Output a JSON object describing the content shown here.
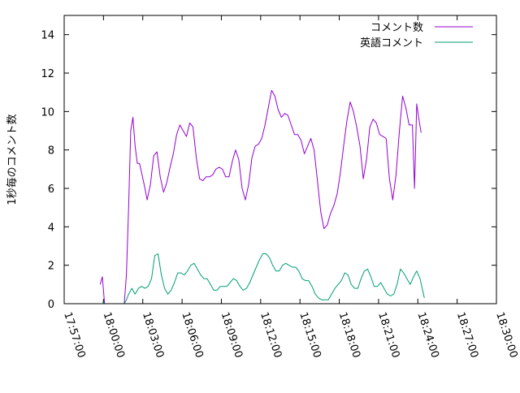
{
  "chart_data": {
    "type": "line",
    "ylabel": "1秒毎のコメント数",
    "xlabel": "",
    "title": "",
    "ylim": [
      0,
      15
    ],
    "y_ticks": [
      "0",
      "2",
      "4",
      "6",
      "8",
      "10",
      "12",
      "14"
    ],
    "xlim": [
      "17:57:00",
      "18:30:00"
    ],
    "x_ticks": [
      "17:57:00",
      "18:00:00",
      "18:03:00",
      "18:06:00",
      "18:09:00",
      "18:12:00",
      "18:15:00",
      "18:18:00",
      "18:21:00",
      "18:24:00",
      "18:27:00",
      "18:30:00"
    ],
    "grid": false,
    "legend_position": "top-right",
    "colors": {
      "series_1": "#9400d3",
      "series_2": "#009e73",
      "axes": "#000000"
    },
    "series": [
      {
        "name": "コメント数",
        "color": "#9400d3",
        "points": [
          [
            "17:59:45",
            1.0
          ],
          [
            "17:59:55",
            1.4
          ],
          [
            "18:00:05",
            0.0
          ],
          [
            "18:00:15",
            0.0
          ],
          [
            "18:00:25",
            0.0
          ],
          [
            "18:00:35",
            0.0
          ],
          [
            "18:00:45",
            0.0
          ],
          [
            "18:00:55",
            0.0
          ],
          [
            "18:01:05",
            0.0
          ],
          [
            "18:01:15",
            0.0
          ],
          [
            "18:01:25",
            0.0
          ],
          [
            "18:01:35",
            0.0
          ],
          [
            "18:01:45",
            1.5
          ],
          [
            "18:01:55",
            5.0
          ],
          [
            "18:02:05",
            9.0
          ],
          [
            "18:02:15",
            9.7
          ],
          [
            "18:02:25",
            8.2
          ],
          [
            "18:02:35",
            7.3
          ],
          [
            "18:02:45",
            7.3
          ],
          [
            "18:02:55",
            6.8
          ],
          [
            "18:03:10",
            6.0
          ],
          [
            "18:03:20",
            5.4
          ],
          [
            "18:03:35",
            6.2
          ],
          [
            "18:03:50",
            7.7
          ],
          [
            "18:04:05",
            7.9
          ],
          [
            "18:04:20",
            6.6
          ],
          [
            "18:04:35",
            5.8
          ],
          [
            "18:04:50",
            6.3
          ],
          [
            "18:05:05",
            7.1
          ],
          [
            "18:05:20",
            7.8
          ],
          [
            "18:05:35",
            8.8
          ],
          [
            "18:05:50",
            9.3
          ],
          [
            "18:06:05",
            9.0
          ],
          [
            "18:06:20",
            8.7
          ],
          [
            "18:06:35",
            9.4
          ],
          [
            "18:06:50",
            9.2
          ],
          [
            "18:07:05",
            7.6
          ],
          [
            "18:07:20",
            6.5
          ],
          [
            "18:07:35",
            6.4
          ],
          [
            "18:07:50",
            6.6
          ],
          [
            "18:08:05",
            6.6
          ],
          [
            "18:08:20",
            6.7
          ],
          [
            "18:08:35",
            7.0
          ],
          [
            "18:08:50",
            7.1
          ],
          [
            "18:09:05",
            7.0
          ],
          [
            "18:09:20",
            6.6
          ],
          [
            "18:09:35",
            6.6
          ],
          [
            "18:09:50",
            7.4
          ],
          [
            "18:10:05",
            8.0
          ],
          [
            "18:10:20",
            7.5
          ],
          [
            "18:10:35",
            6.0
          ],
          [
            "18:10:50",
            5.4
          ],
          [
            "18:11:05",
            6.2
          ],
          [
            "18:11:20",
            7.6
          ],
          [
            "18:11:35",
            8.2
          ],
          [
            "18:11:50",
            8.3
          ],
          [
            "18:12:05",
            8.6
          ],
          [
            "18:12:20",
            9.3
          ],
          [
            "18:12:35",
            10.2
          ],
          [
            "18:12:50",
            11.1
          ],
          [
            "18:13:05",
            10.8
          ],
          [
            "18:13:20",
            10.1
          ],
          [
            "18:13:35",
            9.7
          ],
          [
            "18:13:50",
            9.9
          ],
          [
            "18:14:05",
            9.8
          ],
          [
            "18:14:20",
            9.3
          ],
          [
            "18:14:35",
            8.8
          ],
          [
            "18:14:50",
            8.8
          ],
          [
            "18:15:05",
            8.5
          ],
          [
            "18:15:20",
            7.8
          ],
          [
            "18:15:35",
            8.2
          ],
          [
            "18:15:50",
            8.6
          ],
          [
            "18:16:05",
            8.0
          ],
          [
            "18:16:20",
            6.4
          ],
          [
            "18:16:35",
            4.8
          ],
          [
            "18:16:50",
            3.9
          ],
          [
            "18:17:05",
            4.1
          ],
          [
            "18:17:20",
            4.7
          ],
          [
            "18:17:35",
            5.1
          ],
          [
            "18:17:50",
            5.7
          ],
          [
            "18:18:05",
            6.8
          ],
          [
            "18:18:20",
            8.2
          ],
          [
            "18:18:35",
            9.5
          ],
          [
            "18:18:50",
            10.5
          ],
          [
            "18:19:05",
            10.0
          ],
          [
            "18:19:20",
            9.2
          ],
          [
            "18:19:35",
            8.2
          ],
          [
            "18:19:50",
            6.5
          ],
          [
            "18:20:05",
            7.5
          ],
          [
            "18:20:20",
            9.2
          ],
          [
            "18:20:35",
            9.6
          ],
          [
            "18:20:50",
            9.4
          ],
          [
            "18:21:05",
            8.8
          ],
          [
            "18:21:20",
            8.7
          ],
          [
            "18:21:35",
            8.6
          ],
          [
            "18:21:50",
            6.5
          ],
          [
            "18:22:05",
            5.4
          ],
          [
            "18:22:20",
            6.7
          ],
          [
            "18:22:35",
            8.9
          ],
          [
            "18:22:50",
            10.8
          ],
          [
            "18:23:05",
            10.2
          ],
          [
            "18:23:20",
            9.3
          ],
          [
            "18:23:35",
            9.3
          ],
          [
            "18:23:45",
            6.0
          ],
          [
            "18:23:55",
            10.4
          ],
          [
            "18:24:05",
            9.6
          ],
          [
            "18:24:15",
            8.9
          ]
        ]
      },
      {
        "name": "英語コメント",
        "color": "#009e73",
        "points": [
          [
            "17:59:55",
            0.1
          ],
          [
            "18:00:05",
            0.0
          ],
          [
            "18:00:15",
            0.0
          ],
          [
            "18:00:25",
            0.0
          ],
          [
            "18:00:35",
            0.0
          ],
          [
            "18:00:45",
            0.0
          ],
          [
            "18:00:55",
            0.0
          ],
          [
            "18:01:05",
            0.0
          ],
          [
            "18:01:15",
            0.0
          ],
          [
            "18:01:25",
            0.0
          ],
          [
            "18:01:35",
            0.0
          ],
          [
            "18:01:45",
            0.2
          ],
          [
            "18:01:55",
            0.5
          ],
          [
            "18:02:10",
            0.8
          ],
          [
            "18:02:25",
            0.5
          ],
          [
            "18:02:40",
            0.8
          ],
          [
            "18:02:55",
            0.9
          ],
          [
            "18:03:10",
            0.8
          ],
          [
            "18:03:25",
            0.9
          ],
          [
            "18:03:40",
            1.3
          ],
          [
            "18:03:55",
            2.5
          ],
          [
            "18:04:10",
            2.6
          ],
          [
            "18:04:25",
            1.5
          ],
          [
            "18:04:40",
            0.8
          ],
          [
            "18:04:55",
            0.5
          ],
          [
            "18:05:10",
            0.7
          ],
          [
            "18:05:25",
            1.1
          ],
          [
            "18:05:40",
            1.6
          ],
          [
            "18:05:55",
            1.6
          ],
          [
            "18:06:10",
            1.5
          ],
          [
            "18:06:25",
            1.7
          ],
          [
            "18:06:40",
            2.0
          ],
          [
            "18:06:55",
            2.1
          ],
          [
            "18:07:10",
            1.8
          ],
          [
            "18:07:25",
            1.5
          ],
          [
            "18:07:40",
            1.3
          ],
          [
            "18:07:55",
            1.3
          ],
          [
            "18:08:10",
            1.0
          ],
          [
            "18:08:25",
            0.7
          ],
          [
            "18:08:40",
            0.7
          ],
          [
            "18:08:55",
            0.9
          ],
          [
            "18:09:10",
            0.9
          ],
          [
            "18:09:25",
            0.9
          ],
          [
            "18:09:40",
            1.1
          ],
          [
            "18:09:55",
            1.3
          ],
          [
            "18:10:10",
            1.2
          ],
          [
            "18:10:25",
            0.9
          ],
          [
            "18:10:40",
            0.7
          ],
          [
            "18:10:55",
            0.8
          ],
          [
            "18:11:10",
            1.1
          ],
          [
            "18:11:25",
            1.5
          ],
          [
            "18:11:40",
            1.9
          ],
          [
            "18:11:55",
            2.3
          ],
          [
            "18:12:10",
            2.6
          ],
          [
            "18:12:25",
            2.6
          ],
          [
            "18:12:40",
            2.4
          ],
          [
            "18:12:55",
            2.0
          ],
          [
            "18:13:10",
            1.7
          ],
          [
            "18:13:25",
            1.7
          ],
          [
            "18:13:40",
            2.0
          ],
          [
            "18:13:55",
            2.1
          ],
          [
            "18:14:10",
            2.0
          ],
          [
            "18:14:25",
            1.9
          ],
          [
            "18:14:40",
            1.9
          ],
          [
            "18:14:55",
            1.7
          ],
          [
            "18:15:10",
            1.3
          ],
          [
            "18:15:25",
            1.2
          ],
          [
            "18:15:40",
            1.2
          ],
          [
            "18:15:55",
            0.9
          ],
          [
            "18:16:10",
            0.5
          ],
          [
            "18:16:25",
            0.3
          ],
          [
            "18:16:40",
            0.2
          ],
          [
            "18:16:55",
            0.2
          ],
          [
            "18:17:10",
            0.2
          ],
          [
            "18:17:25",
            0.5
          ],
          [
            "18:17:40",
            0.8
          ],
          [
            "18:17:55",
            1.0
          ],
          [
            "18:18:10",
            1.2
          ],
          [
            "18:18:25",
            1.6
          ],
          [
            "18:18:40",
            1.5
          ],
          [
            "18:18:55",
            1.0
          ],
          [
            "18:19:10",
            0.8
          ],
          [
            "18:19:25",
            0.8
          ],
          [
            "18:19:40",
            1.3
          ],
          [
            "18:19:55",
            1.7
          ],
          [
            "18:20:10",
            1.8
          ],
          [
            "18:20:25",
            1.4
          ],
          [
            "18:20:40",
            0.9
          ],
          [
            "18:20:55",
            0.9
          ],
          [
            "18:21:10",
            1.1
          ],
          [
            "18:21:25",
            0.8
          ],
          [
            "18:21:40",
            0.5
          ],
          [
            "18:21:55",
            0.4
          ],
          [
            "18:22:10",
            0.5
          ],
          [
            "18:22:25",
            1.0
          ],
          [
            "18:22:40",
            1.8
          ],
          [
            "18:22:55",
            1.6
          ],
          [
            "18:23:10",
            1.3
          ],
          [
            "18:23:25",
            1.0
          ],
          [
            "18:23:40",
            1.4
          ],
          [
            "18:23:55",
            1.7
          ],
          [
            "18:24:10",
            1.3
          ],
          [
            "18:24:20",
            0.8
          ],
          [
            "18:24:30",
            0.3
          ]
        ]
      }
    ]
  }
}
